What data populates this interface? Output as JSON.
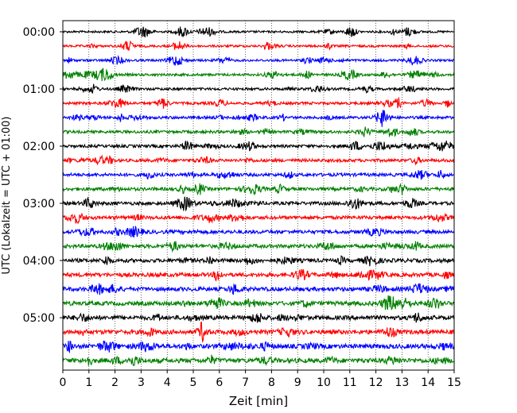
{
  "chart_data": {
    "type": "line",
    "subtype": "helicorder",
    "title": "",
    "xlabel": "Zeit  [min]",
    "ylabel": "UTC (Lokalzeit = UTC + 01:00)",
    "xlim": [
      0,
      15
    ],
    "x_ticks": [
      "0",
      "1",
      "2",
      "3",
      "4",
      "5",
      "6",
      "7",
      "8",
      "9",
      "10",
      "11",
      "12",
      "13",
      "14",
      "15"
    ],
    "y_tick_labels": [
      "00:00",
      "01:00",
      "02:00",
      "03:00",
      "04:00",
      "05:00"
    ],
    "trace_interval_minutes": 15,
    "trace_count": 24,
    "trace_colors": [
      "#000000",
      "#ff0000",
      "#0000ff",
      "#008000"
    ],
    "grid": "vertical dotted at each minute",
    "legend": "none"
  }
}
